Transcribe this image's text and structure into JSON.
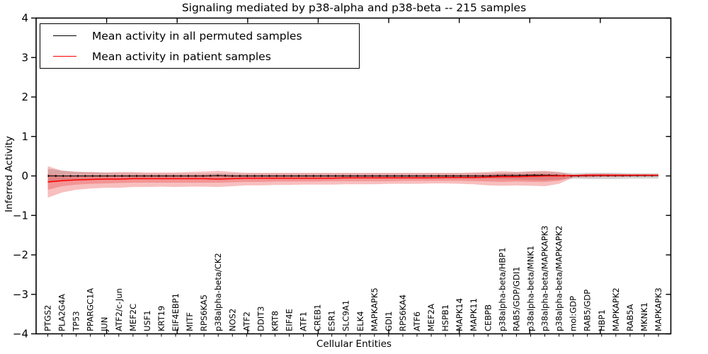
{
  "title": "Signaling mediated by p38-alpha and p38-beta -- 215 samples",
  "legend": {
    "items": [
      {
        "label": "Mean activity in all permuted samples",
        "color": "#000000"
      },
      {
        "label": "Mean activity in patient samples",
        "color": "#ff0000"
      }
    ]
  },
  "chart_data": {
    "type": "line",
    "title": "Signaling mediated by p38-alpha and p38-beta -- 215 samples",
    "xlabel": "Cellular Entities",
    "ylabel": "Inferred Activity",
    "ylim": [
      -4,
      4
    ],
    "yticks": [
      4,
      3,
      2,
      1,
      0,
      -1,
      -2,
      -3,
      -4
    ],
    "xlim": [
      0,
      9
    ],
    "xticks": [
      1,
      2,
      3,
      4,
      5,
      6,
      7,
      8
    ],
    "grid": false,
    "legend_position": "upper left",
    "categories": [
      "PTGS2",
      "PLA2G4A",
      "TP53",
      "PPARGC1A",
      "JUN",
      "ATF2/c-Jun",
      "MEF2C",
      "USF1",
      "KRT19",
      "EIF4EBP1",
      "MITF",
      "RPS6KA5",
      "p38alpha-beta/CK2",
      "NOS2",
      "ATF2",
      "DDIT3",
      "KRT8",
      "EIF4E",
      "ATF1",
      "CREB1",
      "ESR1",
      "SLC9A1",
      "ELK4",
      "MAPKAPK5",
      "GDI1",
      "RPS6KA4",
      "ATF6",
      "MEF2A",
      "HSPB1",
      "MAPK14",
      "MAPK11",
      "CEBPB",
      "p38alpha-beta/HBP1",
      "RAB5/GDP/GDI1",
      "p38alpha-beta/MNK1",
      "p38alpha-beta/MAPKAPK3",
      "p38alpha-beta/MAPKAPK2",
      "mol:GDP",
      "RAB5/GDP",
      "HBP1",
      "MAPKAPK2",
      "RAB5A",
      "MKNK1",
      "MAPKAPK3"
    ],
    "series": [
      {
        "name": "Mean activity in all permuted samples",
        "color": "#000000",
        "values": [
          0,
          0,
          0,
          0,
          0,
          0,
          0,
          0,
          0,
          0,
          0,
          0,
          0.01,
          0,
          0,
          0,
          0,
          0,
          0,
          0,
          0,
          0,
          0,
          0,
          0,
          0,
          0,
          0,
          0,
          0,
          0,
          0,
          0.01,
          0.01,
          0.02,
          0.02,
          0.01,
          0,
          0.01,
          0.01,
          0.01,
          0.01,
          0.01,
          0.01
        ]
      },
      {
        "name": "Mean activity in patient samples",
        "color": "#ff0000",
        "values": [
          -0.15,
          -0.12,
          -0.1,
          -0.09,
          -0.08,
          -0.08,
          -0.07,
          -0.07,
          -0.07,
          -0.07,
          -0.07,
          -0.07,
          -0.08,
          -0.07,
          -0.06,
          -0.06,
          -0.06,
          -0.06,
          -0.06,
          -0.06,
          -0.06,
          -0.05,
          -0.05,
          -0.05,
          -0.05,
          -0.05,
          -0.05,
          -0.05,
          -0.04,
          -0.04,
          -0.04,
          -0.03,
          -0.02,
          -0.02,
          -0.01,
          0.0,
          0.0,
          0.01,
          0.02,
          0.02,
          0.02,
          0.02,
          0.02,
          0.02
        ]
      }
    ],
    "bands": [
      {
        "name": "permuted-samples-range",
        "color": "#787878",
        "opacity": 0.3,
        "upper": [
          0.18,
          0.14,
          0.11,
          0.09,
          0.08,
          0.07,
          0.07,
          0.06,
          0.06,
          0.06,
          0.06,
          0.06,
          0.07,
          0.06,
          0.06,
          0.06,
          0.06,
          0.06,
          0.06,
          0.06,
          0.06,
          0.06,
          0.06,
          0.06,
          0.06,
          0.06,
          0.06,
          0.06,
          0.06,
          0.06,
          0.07,
          0.07,
          0.08,
          0.09,
          0.1,
          0.11,
          0.09,
          0.07,
          0.08,
          0.08,
          0.08,
          0.07,
          0.07,
          0.07
        ],
        "lower": [
          -0.18,
          -0.14,
          -0.11,
          -0.09,
          -0.08,
          -0.07,
          -0.07,
          -0.06,
          -0.06,
          -0.06,
          -0.06,
          -0.06,
          -0.07,
          -0.06,
          -0.06,
          -0.06,
          -0.06,
          -0.06,
          -0.06,
          -0.06,
          -0.06,
          -0.06,
          -0.06,
          -0.06,
          -0.06,
          -0.06,
          -0.06,
          -0.06,
          -0.06,
          -0.06,
          -0.07,
          -0.07,
          -0.08,
          -0.09,
          -0.1,
          -0.11,
          -0.09,
          -0.07,
          -0.08,
          -0.08,
          -0.08,
          -0.07,
          -0.07,
          -0.07
        ]
      },
      {
        "name": "patient-samples-range-outer",
        "color": "#eb3c3c",
        "opacity": 0.33,
        "upper": [
          0.25,
          0.13,
          0.1,
          0.1,
          0.09,
          0.1,
          0.1,
          0.09,
          0.09,
          0.09,
          0.1,
          0.11,
          0.13,
          0.1,
          0.08,
          0.08,
          0.08,
          0.08,
          0.08,
          0.08,
          0.08,
          0.08,
          0.08,
          0.08,
          0.08,
          0.08,
          0.08,
          0.08,
          0.08,
          0.08,
          0.09,
          0.1,
          0.12,
          0.1,
          0.12,
          0.13,
          0.1,
          0.03,
          0.05,
          0.06,
          0.05,
          0.04,
          0.04,
          0.03
        ],
        "lower": [
          -0.55,
          -0.42,
          -0.35,
          -0.32,
          -0.3,
          -0.3,
          -0.28,
          -0.28,
          -0.27,
          -0.28,
          -0.27,
          -0.27,
          -0.28,
          -0.26,
          -0.24,
          -0.24,
          -0.23,
          -0.23,
          -0.22,
          -0.22,
          -0.22,
          -0.21,
          -0.21,
          -0.21,
          -0.2,
          -0.2,
          -0.2,
          -0.19,
          -0.19,
          -0.2,
          -0.21,
          -0.24,
          -0.25,
          -0.24,
          -0.25,
          -0.26,
          -0.2,
          -0.04,
          -0.04,
          -0.03,
          -0.03,
          -0.02,
          -0.02,
          -0.02
        ]
      },
      {
        "name": "patient-samples-range-inner",
        "color": "#eb3c3c",
        "opacity": 0.33,
        "upper": [
          0.05,
          0.01,
          0.0,
          0.0,
          0.0,
          0.01,
          0.01,
          0.01,
          0.01,
          0.01,
          0.01,
          0.02,
          0.02,
          0.01,
          0.01,
          0.01,
          0.01,
          0.01,
          0.01,
          0.01,
          0.01,
          0.01,
          0.01,
          0.01,
          0.01,
          0.01,
          0.01,
          0.01,
          0.02,
          0.02,
          0.02,
          0.03,
          0.05,
          0.04,
          0.05,
          0.06,
          0.04,
          0.02,
          0.03,
          0.04,
          0.03,
          0.03,
          0.03,
          0.03
        ],
        "lower": [
          -0.35,
          -0.26,
          -0.22,
          -0.2,
          -0.19,
          -0.18,
          -0.17,
          -0.17,
          -0.17,
          -0.17,
          -0.17,
          -0.17,
          -0.17,
          -0.16,
          -0.15,
          -0.15,
          -0.14,
          -0.14,
          -0.14,
          -0.14,
          -0.13,
          -0.13,
          -0.13,
          -0.13,
          -0.13,
          -0.12,
          -0.12,
          -0.12,
          -0.12,
          -0.12,
          -0.13,
          -0.14,
          -0.15,
          -0.14,
          -0.15,
          -0.15,
          -0.12,
          -0.02,
          -0.02,
          -0.01,
          -0.01,
          -0.01,
          0.0,
          0.0
        ]
      }
    ]
  }
}
